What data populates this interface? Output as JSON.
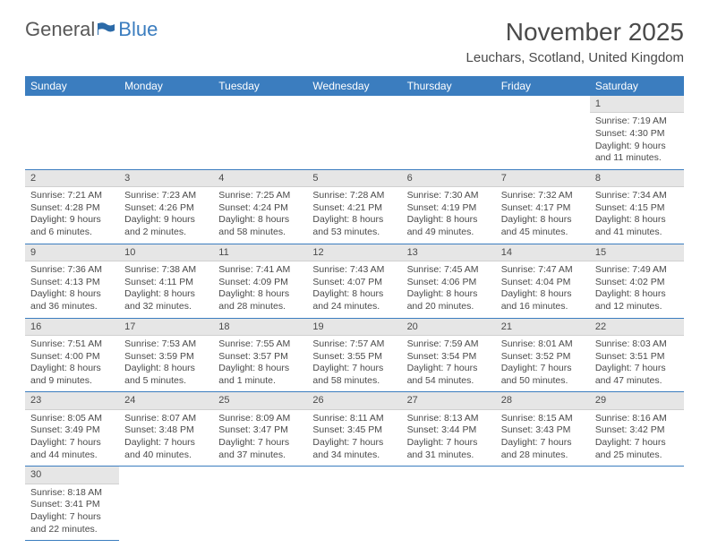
{
  "brand": {
    "part1": "General",
    "part2": "Blue"
  },
  "title": "November 2025",
  "location": "Leuchars, Scotland, United Kingdom",
  "colors": {
    "header_bg": "#3b7dbf",
    "header_text": "#ffffff",
    "daynum_bg": "#e6e6e6",
    "border": "#3b7dbf",
    "text": "#4a4a4a"
  },
  "days_of_week": [
    "Sunday",
    "Monday",
    "Tuesday",
    "Wednesday",
    "Thursday",
    "Friday",
    "Saturday"
  ],
  "weeks": [
    [
      {
        "n": "",
        "sunrise": "",
        "sunset": "",
        "daylight": ""
      },
      {
        "n": "",
        "sunrise": "",
        "sunset": "",
        "daylight": ""
      },
      {
        "n": "",
        "sunrise": "",
        "sunset": "",
        "daylight": ""
      },
      {
        "n": "",
        "sunrise": "",
        "sunset": "",
        "daylight": ""
      },
      {
        "n": "",
        "sunrise": "",
        "sunset": "",
        "daylight": ""
      },
      {
        "n": "",
        "sunrise": "",
        "sunset": "",
        "daylight": ""
      },
      {
        "n": "1",
        "sunrise": "Sunrise: 7:19 AM",
        "sunset": "Sunset: 4:30 PM",
        "daylight": "Daylight: 9 hours and 11 minutes."
      }
    ],
    [
      {
        "n": "2",
        "sunrise": "Sunrise: 7:21 AM",
        "sunset": "Sunset: 4:28 PM",
        "daylight": "Daylight: 9 hours and 6 minutes."
      },
      {
        "n": "3",
        "sunrise": "Sunrise: 7:23 AM",
        "sunset": "Sunset: 4:26 PM",
        "daylight": "Daylight: 9 hours and 2 minutes."
      },
      {
        "n": "4",
        "sunrise": "Sunrise: 7:25 AM",
        "sunset": "Sunset: 4:24 PM",
        "daylight": "Daylight: 8 hours and 58 minutes."
      },
      {
        "n": "5",
        "sunrise": "Sunrise: 7:28 AM",
        "sunset": "Sunset: 4:21 PM",
        "daylight": "Daylight: 8 hours and 53 minutes."
      },
      {
        "n": "6",
        "sunrise": "Sunrise: 7:30 AM",
        "sunset": "Sunset: 4:19 PM",
        "daylight": "Daylight: 8 hours and 49 minutes."
      },
      {
        "n": "7",
        "sunrise": "Sunrise: 7:32 AM",
        "sunset": "Sunset: 4:17 PM",
        "daylight": "Daylight: 8 hours and 45 minutes."
      },
      {
        "n": "8",
        "sunrise": "Sunrise: 7:34 AM",
        "sunset": "Sunset: 4:15 PM",
        "daylight": "Daylight: 8 hours and 41 minutes."
      }
    ],
    [
      {
        "n": "9",
        "sunrise": "Sunrise: 7:36 AM",
        "sunset": "Sunset: 4:13 PM",
        "daylight": "Daylight: 8 hours and 36 minutes."
      },
      {
        "n": "10",
        "sunrise": "Sunrise: 7:38 AM",
        "sunset": "Sunset: 4:11 PM",
        "daylight": "Daylight: 8 hours and 32 minutes."
      },
      {
        "n": "11",
        "sunrise": "Sunrise: 7:41 AM",
        "sunset": "Sunset: 4:09 PM",
        "daylight": "Daylight: 8 hours and 28 minutes."
      },
      {
        "n": "12",
        "sunrise": "Sunrise: 7:43 AM",
        "sunset": "Sunset: 4:07 PM",
        "daylight": "Daylight: 8 hours and 24 minutes."
      },
      {
        "n": "13",
        "sunrise": "Sunrise: 7:45 AM",
        "sunset": "Sunset: 4:06 PM",
        "daylight": "Daylight: 8 hours and 20 minutes."
      },
      {
        "n": "14",
        "sunrise": "Sunrise: 7:47 AM",
        "sunset": "Sunset: 4:04 PM",
        "daylight": "Daylight: 8 hours and 16 minutes."
      },
      {
        "n": "15",
        "sunrise": "Sunrise: 7:49 AM",
        "sunset": "Sunset: 4:02 PM",
        "daylight": "Daylight: 8 hours and 12 minutes."
      }
    ],
    [
      {
        "n": "16",
        "sunrise": "Sunrise: 7:51 AM",
        "sunset": "Sunset: 4:00 PM",
        "daylight": "Daylight: 8 hours and 9 minutes."
      },
      {
        "n": "17",
        "sunrise": "Sunrise: 7:53 AM",
        "sunset": "Sunset: 3:59 PM",
        "daylight": "Daylight: 8 hours and 5 minutes."
      },
      {
        "n": "18",
        "sunrise": "Sunrise: 7:55 AM",
        "sunset": "Sunset: 3:57 PM",
        "daylight": "Daylight: 8 hours and 1 minute."
      },
      {
        "n": "19",
        "sunrise": "Sunrise: 7:57 AM",
        "sunset": "Sunset: 3:55 PM",
        "daylight": "Daylight: 7 hours and 58 minutes."
      },
      {
        "n": "20",
        "sunrise": "Sunrise: 7:59 AM",
        "sunset": "Sunset: 3:54 PM",
        "daylight": "Daylight: 7 hours and 54 minutes."
      },
      {
        "n": "21",
        "sunrise": "Sunrise: 8:01 AM",
        "sunset": "Sunset: 3:52 PM",
        "daylight": "Daylight: 7 hours and 50 minutes."
      },
      {
        "n": "22",
        "sunrise": "Sunrise: 8:03 AM",
        "sunset": "Sunset: 3:51 PM",
        "daylight": "Daylight: 7 hours and 47 minutes."
      }
    ],
    [
      {
        "n": "23",
        "sunrise": "Sunrise: 8:05 AM",
        "sunset": "Sunset: 3:49 PM",
        "daylight": "Daylight: 7 hours and 44 minutes."
      },
      {
        "n": "24",
        "sunrise": "Sunrise: 8:07 AM",
        "sunset": "Sunset: 3:48 PM",
        "daylight": "Daylight: 7 hours and 40 minutes."
      },
      {
        "n": "25",
        "sunrise": "Sunrise: 8:09 AM",
        "sunset": "Sunset: 3:47 PM",
        "daylight": "Daylight: 7 hours and 37 minutes."
      },
      {
        "n": "26",
        "sunrise": "Sunrise: 8:11 AM",
        "sunset": "Sunset: 3:45 PM",
        "daylight": "Daylight: 7 hours and 34 minutes."
      },
      {
        "n": "27",
        "sunrise": "Sunrise: 8:13 AM",
        "sunset": "Sunset: 3:44 PM",
        "daylight": "Daylight: 7 hours and 31 minutes."
      },
      {
        "n": "28",
        "sunrise": "Sunrise: 8:15 AM",
        "sunset": "Sunset: 3:43 PM",
        "daylight": "Daylight: 7 hours and 28 minutes."
      },
      {
        "n": "29",
        "sunrise": "Sunrise: 8:16 AM",
        "sunset": "Sunset: 3:42 PM",
        "daylight": "Daylight: 7 hours and 25 minutes."
      }
    ],
    [
      {
        "n": "30",
        "sunrise": "Sunrise: 8:18 AM",
        "sunset": "Sunset: 3:41 PM",
        "daylight": "Daylight: 7 hours and 22 minutes."
      },
      {
        "n": "",
        "sunrise": "",
        "sunset": "",
        "daylight": ""
      },
      {
        "n": "",
        "sunrise": "",
        "sunset": "",
        "daylight": ""
      },
      {
        "n": "",
        "sunrise": "",
        "sunset": "",
        "daylight": ""
      },
      {
        "n": "",
        "sunrise": "",
        "sunset": "",
        "daylight": ""
      },
      {
        "n": "",
        "sunrise": "",
        "sunset": "",
        "daylight": ""
      },
      {
        "n": "",
        "sunrise": "",
        "sunset": "",
        "daylight": ""
      }
    ]
  ]
}
